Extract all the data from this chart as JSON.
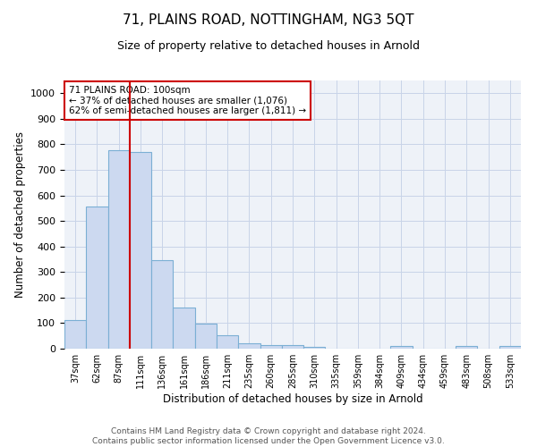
{
  "title": "71, PLAINS ROAD, NOTTINGHAM, NG3 5QT",
  "subtitle": "Size of property relative to detached houses in Arnold",
  "xlabel": "Distribution of detached houses by size in Arnold",
  "ylabel": "Number of detached properties",
  "categories": [
    "37sqm",
    "62sqm",
    "87sqm",
    "111sqm",
    "136sqm",
    "161sqm",
    "186sqm",
    "211sqm",
    "235sqm",
    "260sqm",
    "285sqm",
    "310sqm",
    "335sqm",
    "359sqm",
    "384sqm",
    "409sqm",
    "434sqm",
    "459sqm",
    "483sqm",
    "508sqm",
    "533sqm"
  ],
  "values": [
    113,
    557,
    778,
    770,
    347,
    162,
    97,
    54,
    21,
    14,
    14,
    8,
    0,
    0,
    0,
    10,
    0,
    0,
    10,
    0,
    10
  ],
  "bar_color": "#ccd9f0",
  "bar_edge_color": "#7bafd4",
  "bar_linewidth": 0.8,
  "vline_color": "#cc0000",
  "vline_x_idx": 2.5,
  "annotation_text": "71 PLAINS ROAD: 100sqm\n← 37% of detached houses are smaller (1,076)\n62% of semi-detached houses are larger (1,811) →",
  "annotation_box_color": "#ffffff",
  "annotation_box_edge": "#cc0000",
  "annotation_fontsize": 7.5,
  "ylim": [
    0,
    1050
  ],
  "yticks": [
    0,
    100,
    200,
    300,
    400,
    500,
    600,
    700,
    800,
    900,
    1000
  ],
  "grid_color": "#c8d4e8",
  "background_color": "#eef2f8",
  "title_fontsize": 11,
  "subtitle_fontsize": 9,
  "xlabel_fontsize": 8.5,
  "ylabel_fontsize": 8.5,
  "footer_text": "Contains HM Land Registry data © Crown copyright and database right 2024.\nContains public sector information licensed under the Open Government Licence v3.0.",
  "footer_fontsize": 6.5
}
